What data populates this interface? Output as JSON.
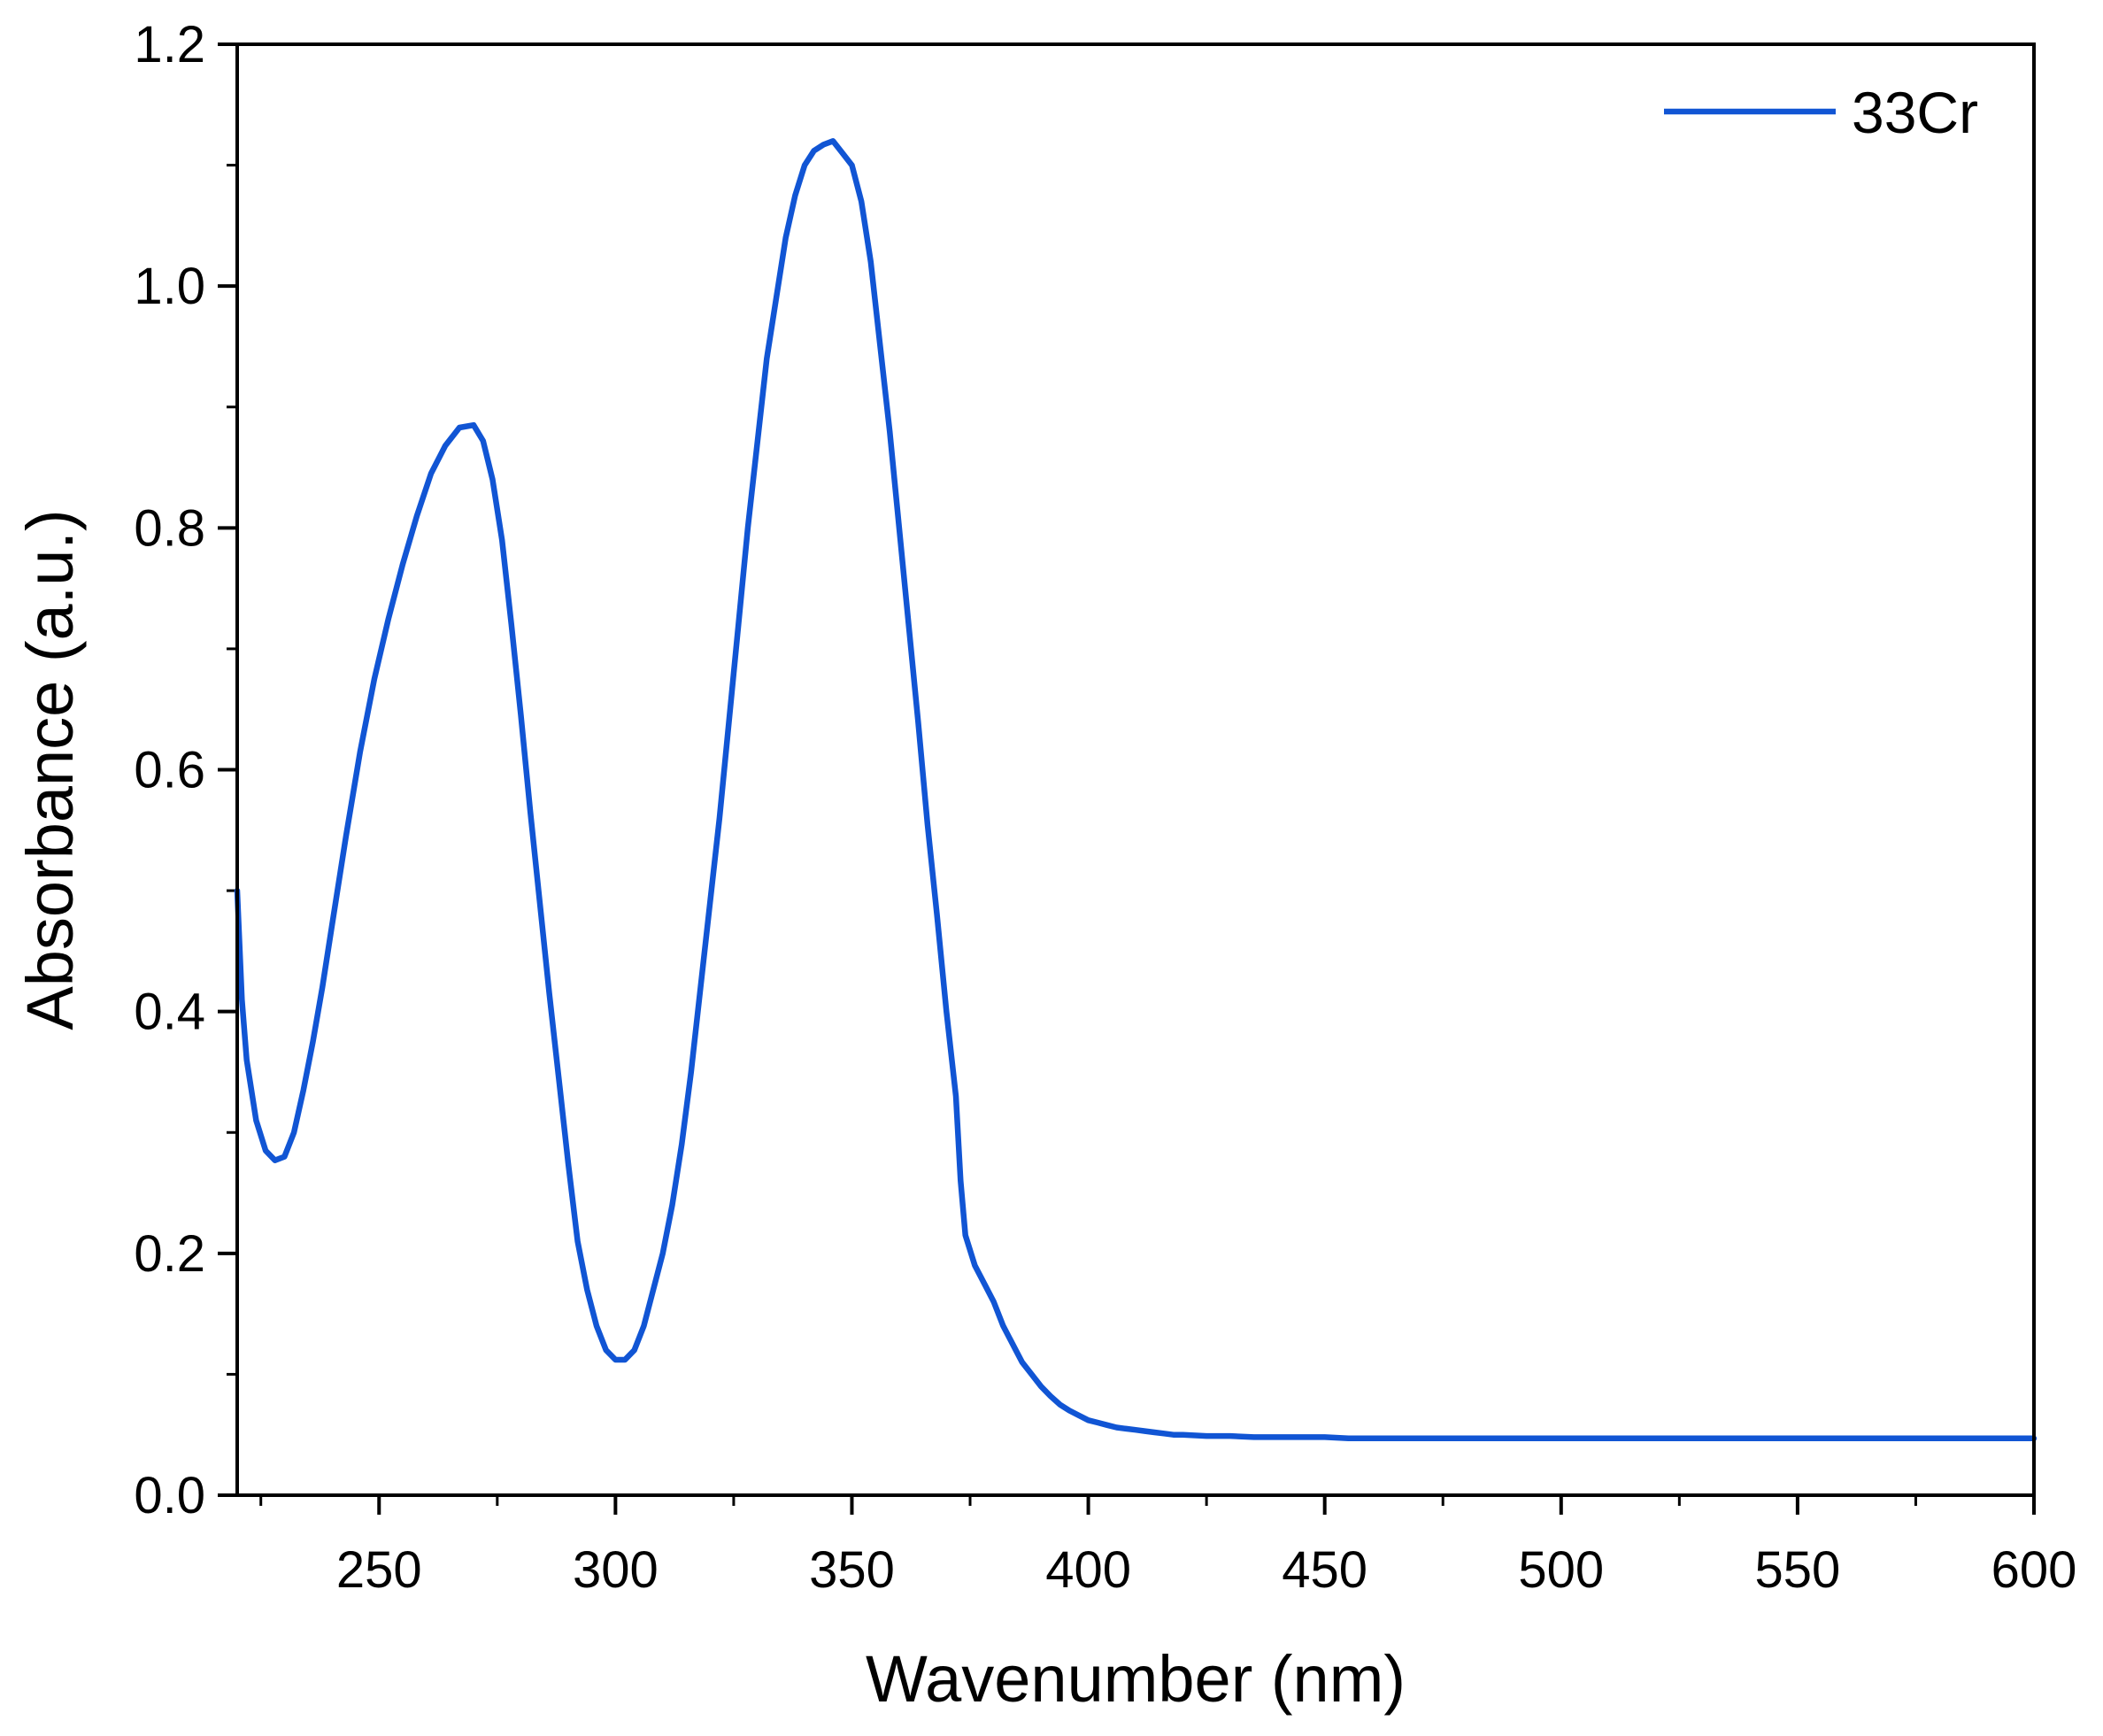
{
  "chart_data": {
    "type": "line",
    "title": "",
    "xlabel": "Wavenumber (nm)",
    "ylabel": "Absorbance (a.u.)",
    "xlim": [
      220,
      600
    ],
    "ylim": [
      0.0,
      1.2
    ],
    "x_ticks": [
      250,
      300,
      350,
      400,
      450,
      500,
      550,
      600
    ],
    "x_tick_labels": [
      "250",
      "300",
      "350",
      "400",
      "450",
      "500",
      "550",
      "600"
    ],
    "y_ticks": [
      0.0,
      0.2,
      0.4,
      0.6,
      0.8,
      1.0,
      1.2
    ],
    "y_tick_labels": [
      "0.0",
      "0.2",
      "0.4",
      "0.6",
      "0.8",
      "1.0",
      "1.2"
    ],
    "grid": false,
    "legend": "top-right",
    "colors": {
      "series": "#1155d4"
    },
    "series": [
      {
        "name": "33Cr",
        "x": [
          220,
          221,
          222,
          224,
          226,
          228,
          230,
          232,
          234,
          236,
          238,
          240,
          243,
          246,
          249,
          252,
          255,
          258,
          261,
          264,
          267,
          270,
          272,
          274,
          276,
          278,
          280,
          282,
          284,
          286,
          288,
          290,
          292,
          294,
          296,
          298,
          300,
          302,
          304,
          306,
          308,
          310,
          312,
          314,
          316,
          318,
          320,
          322,
          324,
          326,
          328,
          330,
          332,
          334,
          336,
          338,
          340,
          342,
          344,
          346,
          348,
          350,
          352,
          354,
          356,
          358,
          360,
          362,
          364,
          366,
          368,
          370,
          372,
          373,
          374,
          376,
          378,
          380,
          382,
          384,
          386,
          388,
          390,
          392,
          394,
          396,
          398,
          400,
          402,
          404,
          406,
          408,
          410,
          412,
          414,
          416,
          418,
          420,
          425,
          430,
          435,
          440,
          445,
          450,
          455,
          460,
          465,
          470,
          475,
          480,
          490,
          500,
          520,
          540,
          560,
          580,
          600
        ],
        "y": [
          0.5,
          0.41,
          0.36,
          0.31,
          0.285,
          0.277,
          0.28,
          0.3,
          0.335,
          0.375,
          0.42,
          0.47,
          0.545,
          0.615,
          0.675,
          0.725,
          0.77,
          0.81,
          0.845,
          0.868,
          0.883,
          0.885,
          0.872,
          0.84,
          0.79,
          0.72,
          0.645,
          0.565,
          0.49,
          0.415,
          0.345,
          0.275,
          0.21,
          0.17,
          0.14,
          0.12,
          0.112,
          0.112,
          0.12,
          0.14,
          0.17,
          0.2,
          0.24,
          0.29,
          0.35,
          0.42,
          0.49,
          0.56,
          0.64,
          0.72,
          0.8,
          0.87,
          0.94,
          0.99,
          1.04,
          1.075,
          1.1,
          1.112,
          1.117,
          1.12,
          1.11,
          1.1,
          1.07,
          1.02,
          0.95,
          0.88,
          0.8,
          0.72,
          0.64,
          0.555,
          0.48,
          0.4,
          0.33,
          0.26,
          0.215,
          0.19,
          0.175,
          0.16,
          0.14,
          0.125,
          0.11,
          0.1,
          0.09,
          0.082,
          0.075,
          0.07,
          0.066,
          0.062,
          0.06,
          0.058,
          0.056,
          0.055,
          0.054,
          0.053,
          0.052,
          0.051,
          0.05,
          0.05,
          0.049,
          0.049,
          0.048,
          0.048,
          0.048,
          0.048,
          0.047,
          0.047,
          0.047,
          0.047,
          0.047,
          0.047,
          0.047,
          0.047,
          0.047,
          0.047,
          0.047,
          0.047,
          0.047
        ]
      }
    ]
  }
}
